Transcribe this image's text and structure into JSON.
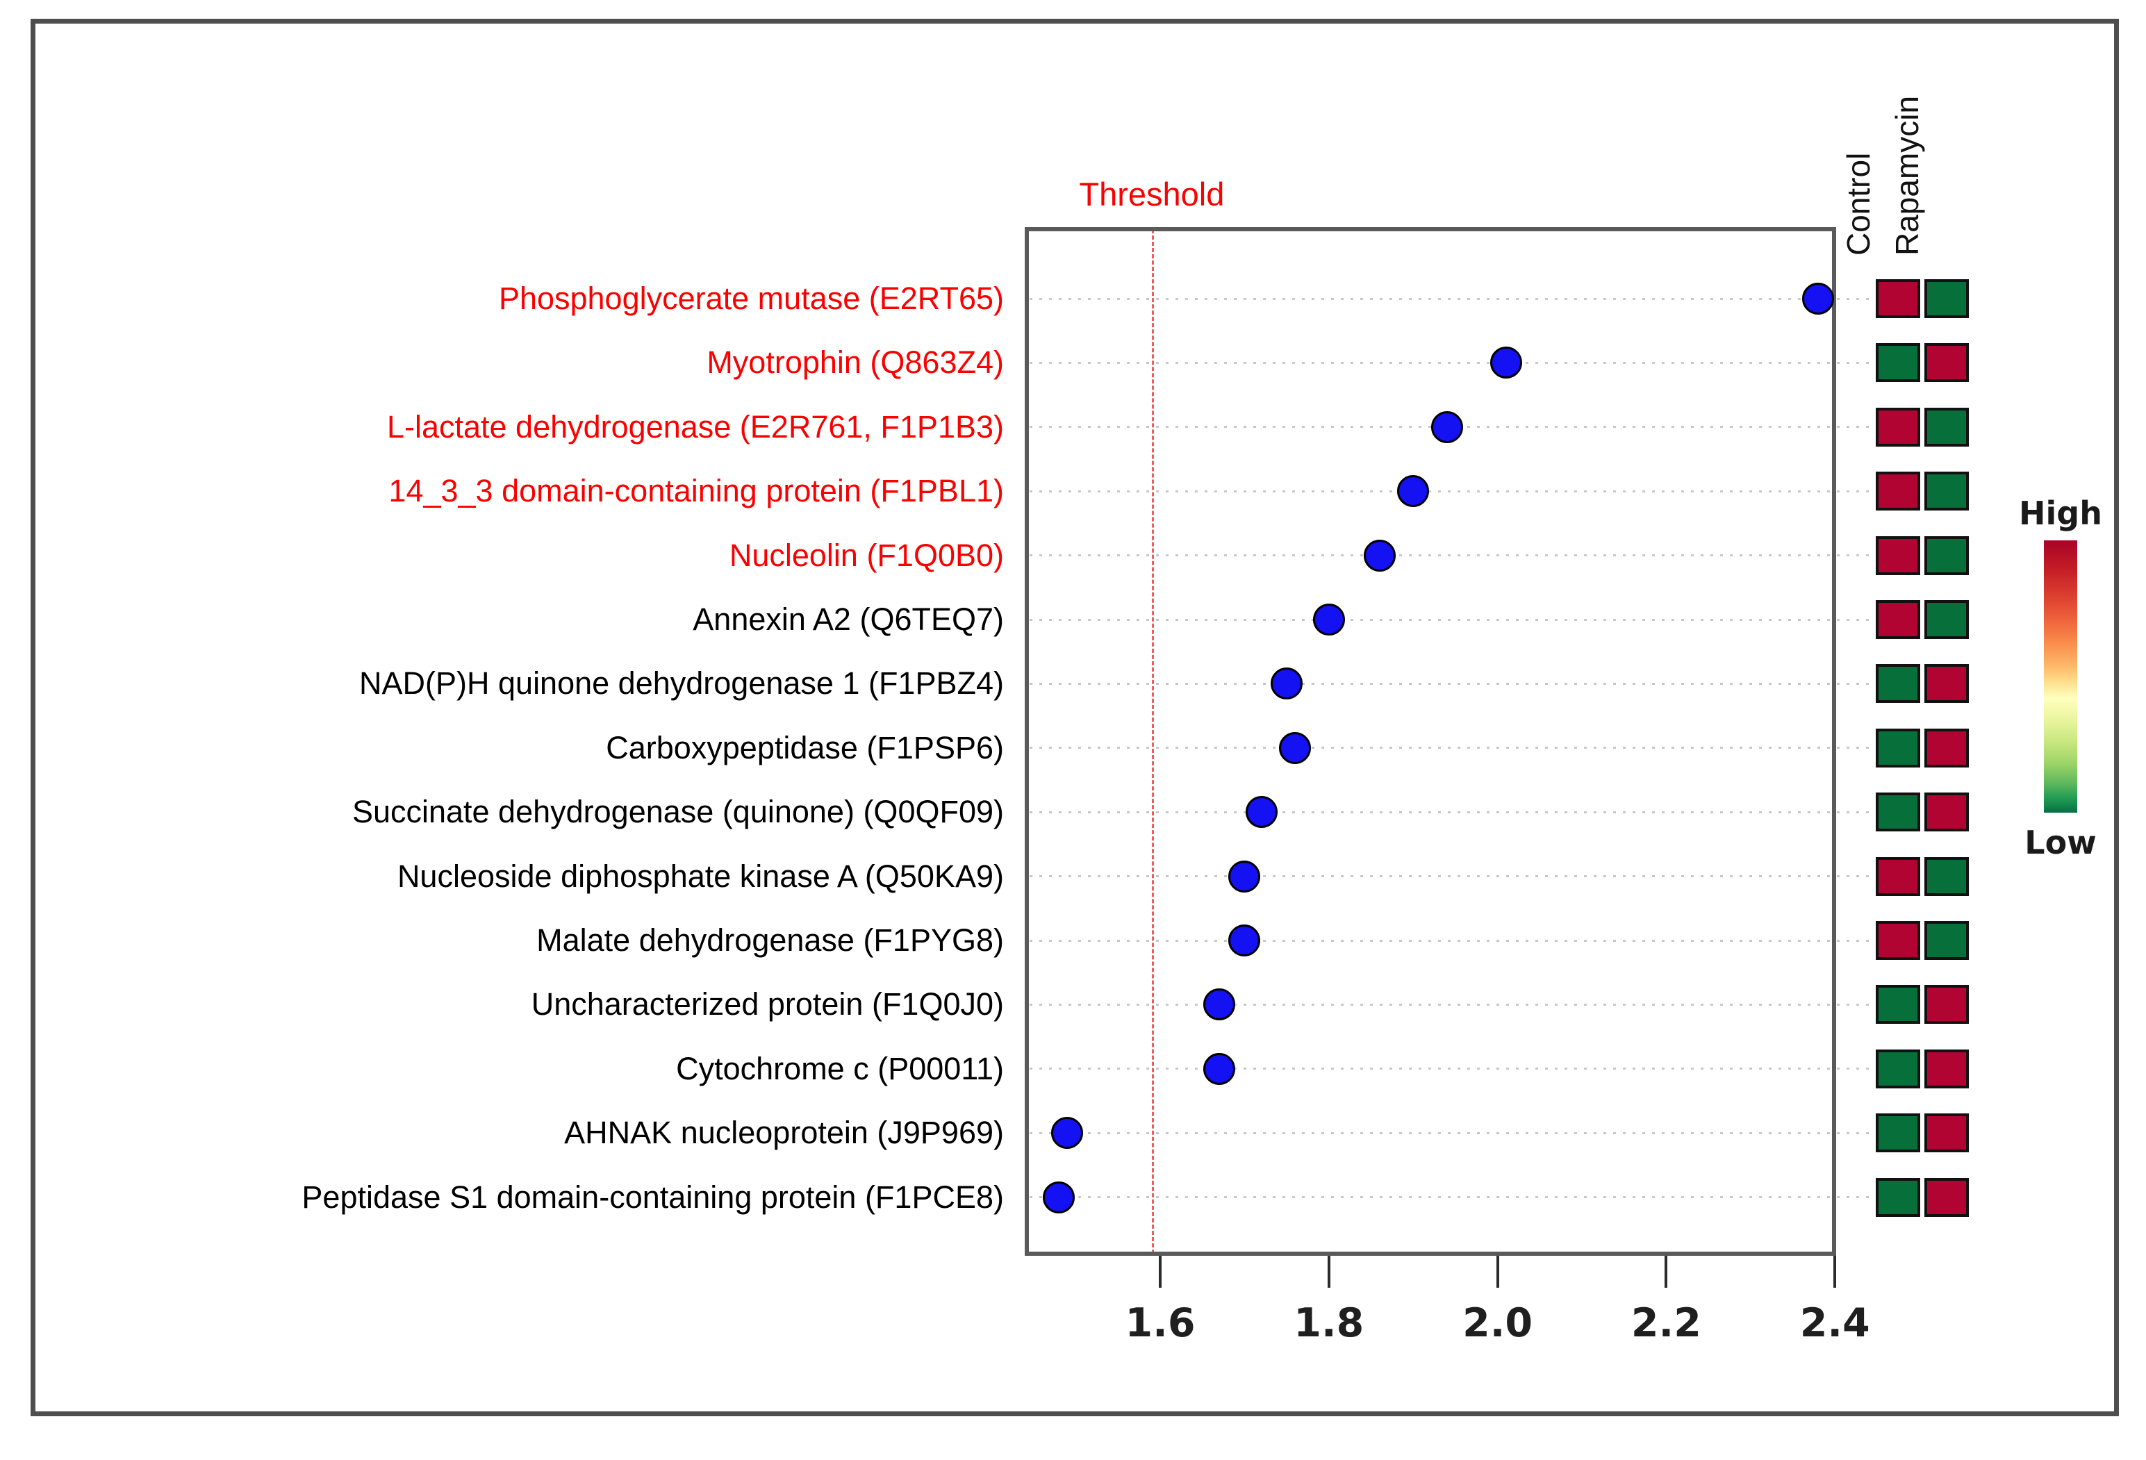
{
  "figure": {
    "threshold_label": "Threshold",
    "colors": {
      "dot_blue": "#1411f3",
      "heat_high_red": "#b20433",
      "heat_low_green": "#07703a",
      "highlight_label_red": "#fb0000",
      "threshold_line_red": "#f15b5b",
      "frame_gray": "#4e4e4e"
    }
  },
  "chart_data": {
    "type": "scatter",
    "title": "Threshold",
    "xlabel": "",
    "ylabel": "",
    "xlim": [
      1.44,
      2.42
    ],
    "x_tick_values": [
      1.6,
      1.8,
      2.0,
      2.2,
      2.4
    ],
    "x_tick_labels": [
      "1.6",
      "1.8",
      "2.0",
      "2.2",
      "2.4"
    ],
    "threshold_x": 1.59,
    "grid": "dotted-horizontal",
    "heatmap_columns": [
      "Control",
      "Rapamycin"
    ],
    "legend": {
      "high": "High",
      "low": "Low",
      "position": "right"
    },
    "rows": [
      {
        "label": "Phosphoglycerate mutase (E2RT65)",
        "label_color": "red",
        "value": 2.38,
        "control": "high",
        "rapamycin": "low"
      },
      {
        "label": "Myotrophin (Q863Z4)",
        "label_color": "red",
        "value": 2.01,
        "control": "low",
        "rapamycin": "high"
      },
      {
        "label": "L-lactate dehydrogenase (E2R761, F1P1B3)",
        "label_color": "red",
        "value": 1.94,
        "control": "high",
        "rapamycin": "low"
      },
      {
        "label": "14_3_3 domain-containing protein (F1PBL1)",
        "label_color": "red",
        "value": 1.9,
        "control": "high",
        "rapamycin": "low"
      },
      {
        "label": "Nucleolin (F1Q0B0)",
        "label_color": "red",
        "value": 1.86,
        "control": "high",
        "rapamycin": "low"
      },
      {
        "label": "Annexin A2 (Q6TEQ7)",
        "label_color": "black",
        "value": 1.8,
        "control": "high",
        "rapamycin": "low"
      },
      {
        "label": "NAD(P)H quinone dehydrogenase 1 (F1PBZ4)",
        "label_color": "black",
        "value": 1.75,
        "control": "low",
        "rapamycin": "high"
      },
      {
        "label": "Carboxypeptidase (F1PSP6)",
        "label_color": "black",
        "value": 1.76,
        "control": "low",
        "rapamycin": "high"
      },
      {
        "label": "Succinate dehydrogenase (quinone) (Q0QF09)",
        "label_color": "black",
        "value": 1.72,
        "control": "low",
        "rapamycin": "high"
      },
      {
        "label": "Nucleoside diphosphate kinase A (Q50KA9)",
        "label_color": "black",
        "value": 1.7,
        "control": "high",
        "rapamycin": "low"
      },
      {
        "label": "Malate dehydrogenase (F1PYG8)",
        "label_color": "black",
        "value": 1.7,
        "control": "high",
        "rapamycin": "low"
      },
      {
        "label": "Uncharacterized protein (F1Q0J0)",
        "label_color": "black",
        "value": 1.67,
        "control": "low",
        "rapamycin": "high"
      },
      {
        "label": "Cytochrome c (P00011)",
        "label_color": "black",
        "value": 1.67,
        "control": "low",
        "rapamycin": "high"
      },
      {
        "label": "AHNAK nucleoprotein (J9P969)",
        "label_color": "black",
        "value": 1.49,
        "control": "low",
        "rapamycin": "high"
      },
      {
        "label": "Peptidase S1 domain-containing protein (F1PCE8)",
        "label_color": "black",
        "value": 1.48,
        "control": "low",
        "rapamycin": "high"
      }
    ]
  }
}
